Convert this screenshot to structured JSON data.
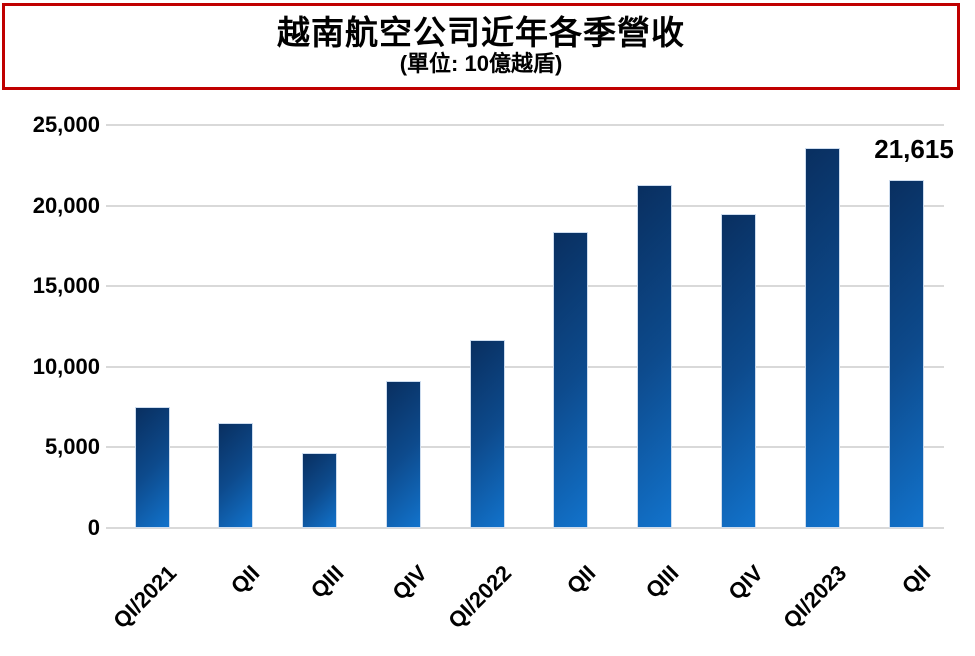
{
  "chart_data": {
    "type": "bar",
    "title": "越南航空公司近年各季營收",
    "subtitle": "(單位: 10億越盾)",
    "categories": [
      "QI/2021",
      "QII",
      "QIII",
      "QIV",
      "QI/2022",
      "QII",
      "QIII",
      "QIV",
      "QI/2023",
      "QII"
    ],
    "values": [
      7500,
      6500,
      4650,
      9100,
      11650,
      18350,
      21250,
      19500,
      23550,
      21615
    ],
    "data_labels": [
      {
        "index": 9,
        "label": "21,615"
      }
    ],
    "ylim": [
      0,
      25000
    ],
    "yticks": [
      0,
      5000,
      10000,
      15000,
      20000,
      25000
    ],
    "ytick_labels": [
      "0",
      "5,000",
      "10,000",
      "15,000",
      "20,000",
      "25,000"
    ],
    "xlabel": "",
    "ylabel": "",
    "grid": "horizontal",
    "legend_position": "none",
    "colors": {
      "bar_gradient_start": "#092f60",
      "bar_gradient_mid": "#0d4a8c",
      "bar_gradient_end": "#1273cc",
      "bar_outline": "#cddcee",
      "gridline": "#d9d9d9",
      "title_border": "#c00000",
      "text": "#000000"
    }
  }
}
